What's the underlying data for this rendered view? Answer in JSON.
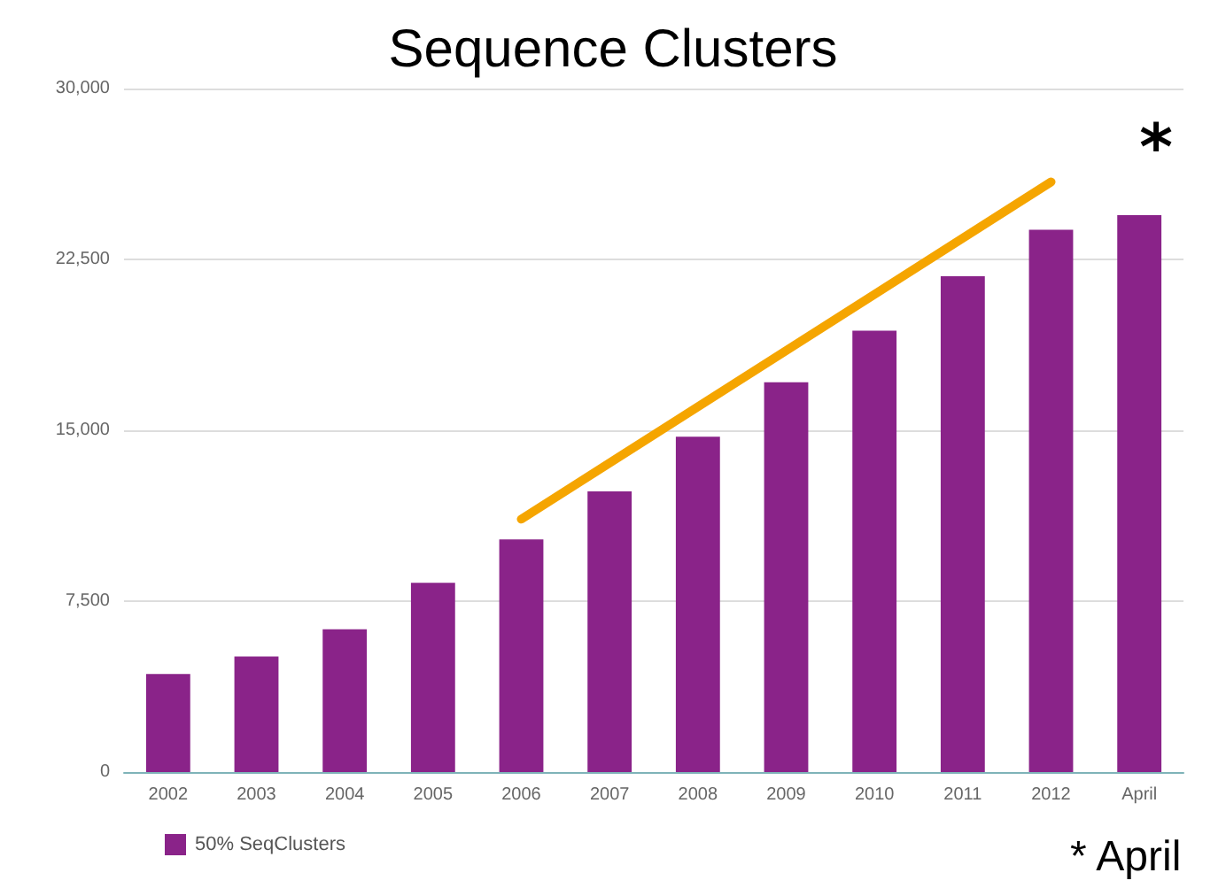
{
  "chart_data": {
    "type": "bar",
    "title": "Sequence Clusters",
    "categories": [
      "2002",
      "2003",
      "2004",
      "2005",
      "2006",
      "2007",
      "2008",
      "2009",
      "2010",
      "2011",
      "2012",
      "April"
    ],
    "series": [
      {
        "name": "50% SeqClusters",
        "color": "#8a2389",
        "values": [
          4300,
          5070,
          6270,
          8310,
          10210,
          12320,
          14720,
          17110,
          19370,
          21760,
          23800,
          24440
        ]
      },
      {
        "type": "line",
        "color": "#f5a500",
        "values": [
          null,
          null,
          null,
          null,
          11100,
          null,
          null,
          null,
          null,
          null,
          25900,
          null
        ]
      }
    ],
    "ylim": [
      0,
      30000
    ],
    "yticks": [
      0,
      {
        "value": 7500,
        "label": "7,500"
      },
      {
        "value": 15000,
        "label": "15,000"
      },
      {
        "value": 22500,
        "label": "22,500"
      },
      {
        "value": 30000,
        "label": "30,000"
      }
    ],
    "grid": "y",
    "legend": "bottom left",
    "annotations": [
      "*",
      "* April"
    ]
  }
}
